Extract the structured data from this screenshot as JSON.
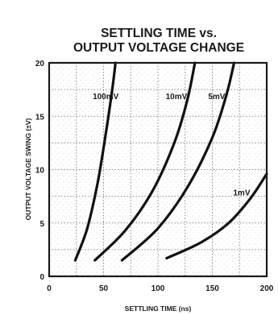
{
  "chart_data": {
    "type": "line",
    "title_lines": [
      "SETTLING TIME vs.",
      "OUTPUT VOLTAGE CHANGE"
    ],
    "xlabel": "SETTLING TIME (ns)",
    "ylabel": "OUTPUT VOLTAGE SWING (±V)",
    "xlim": [
      0,
      200
    ],
    "ylim": [
      0,
      20
    ],
    "x_ticks": [
      0,
      50,
      100,
      150,
      200
    ],
    "y_ticks": [
      0,
      5,
      10,
      15,
      20
    ],
    "x_gridlines": [
      25,
      50,
      75,
      100,
      125,
      150,
      175
    ],
    "y_gridlines": [
      2.5,
      5,
      7.5,
      10,
      12.5,
      15,
      17.5
    ],
    "grid": true,
    "legend": "none",
    "series": [
      {
        "name": "100mV",
        "label_at": [
          52,
          16.6
        ],
        "points": [
          [
            24,
            1.5
          ],
          [
            35,
            4.5
          ],
          [
            45,
            9.0
          ],
          [
            53,
            14.0
          ],
          [
            58,
            17.5
          ],
          [
            61,
            20.0
          ]
        ]
      },
      {
        "name": "10mV",
        "label_at": [
          117,
          16.6
        ],
        "points": [
          [
            42,
            1.5
          ],
          [
            70,
            4.3
          ],
          [
            95,
            8.0
          ],
          [
            115,
            12.5
          ],
          [
            127,
            16.5
          ],
          [
            134,
            20.0
          ]
        ]
      },
      {
        "name": "5mV",
        "label_at": [
          154,
          16.6
        ],
        "points": [
          [
            67,
            1.5
          ],
          [
            100,
            4.5
          ],
          [
            128,
            8.5
          ],
          [
            150,
            13.0
          ],
          [
            163,
            17.0
          ],
          [
            170,
            20.0
          ]
        ]
      },
      {
        "name": "1mV",
        "label_at": [
          177,
          7.6
        ],
        "points": [
          [
            108,
            1.7
          ],
          [
            140,
            3.2
          ],
          [
            165,
            5.0
          ],
          [
            185,
            7.3
          ],
          [
            200,
            9.6
          ]
        ]
      }
    ]
  }
}
